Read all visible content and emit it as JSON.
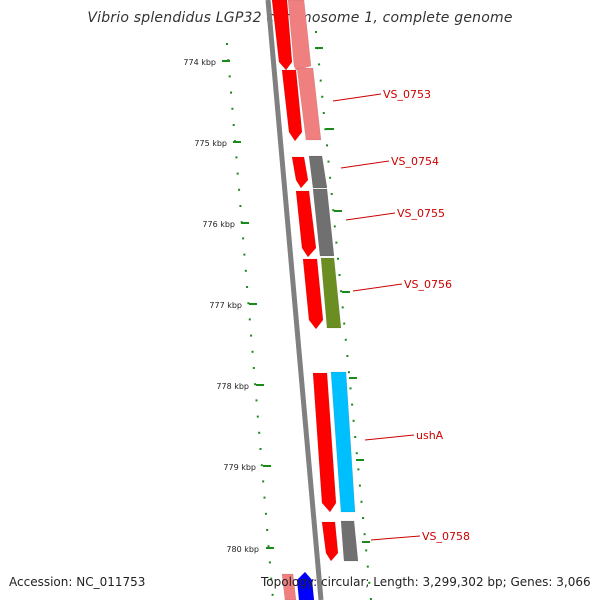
{
  "title": "Vibrio splendidus LGP32 chromosome 1, complete genome",
  "footer": {
    "accession": "Accession: NC_011753",
    "summary": "Topology: circular; Length: 3,299,302 bp; Genes: 3,066"
  },
  "ruler": {
    "major_labels": [
      "774 kbp",
      "775 kbp",
      "776 kbp",
      "777 kbp",
      "778 kbp",
      "779 kbp",
      "780 kbp"
    ],
    "color": "#1a8a1a"
  },
  "colors": {
    "backbone": "#808080",
    "strand_red": "#ff0000",
    "grey": "#707070",
    "olive": "#6b8e23",
    "cyan": "#00bfff",
    "blue": "#0000ff",
    "label": "#cc0000"
  },
  "gene_labels": [
    "VS_0753",
    "VS_0754",
    "VS_0755",
    "VS_0756",
    "ushA",
    "VS_0758"
  ]
}
